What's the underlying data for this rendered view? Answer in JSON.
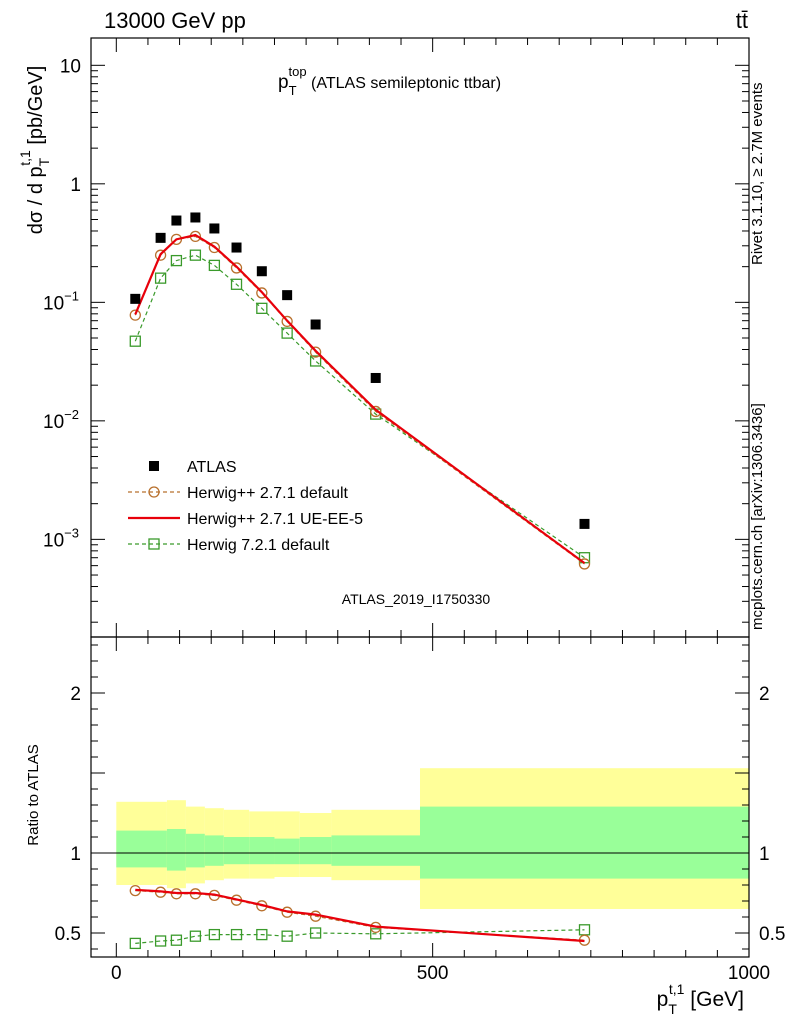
{
  "header": {
    "left": "13000 GeV pp",
    "right": "tt̄"
  },
  "side_labels": {
    "rivet": "Rivet 3.1.10, ≥ 2.7M events",
    "mcplots": "mcplots.cern.ch [arXiv:1306.3436]"
  },
  "chart_data": [
    {
      "type": "scatter",
      "panel": "main",
      "title": "p_T^top (ATLAS semileptonic ttbar)",
      "title_main": "p",
      "title_sub": "T",
      "title_sup": "top",
      "title_rest": "(ATLAS semileptonic ttbar)",
      "ylabel": "dσ / d p_T^{t,1} [pb/GeV]",
      "ylabel_parts": {
        "prefix": "dσ / d p",
        "sub": "T",
        "sup": "t,1",
        "suffix": " [pb/GeV]"
      },
      "yscale": "log",
      "ylim": [
        0.00015,
        17
      ],
      "xlim": [
        -40,
        1000
      ],
      "yticks": [
        {
          "value": 10,
          "label": "10"
        },
        {
          "value": 1,
          "label": "1"
        },
        {
          "value": 0.1,
          "label": "10",
          "exp": "−1"
        },
        {
          "value": 0.01,
          "label": "10",
          "exp": "−2"
        },
        {
          "value": 0.001,
          "label": "10",
          "exp": "−3"
        }
      ],
      "watermark": "ATLAS_2019_I1750330",
      "legend_position": "lower-left",
      "series": [
        {
          "name": "ATLAS",
          "style": "data-squares",
          "color": "#000000",
          "x": [
            30,
            70,
            95,
            125,
            155,
            190,
            230,
            270,
            315,
            410,
            740
          ],
          "y": [
            0.107,
            0.35,
            0.49,
            0.52,
            0.42,
            0.29,
            0.183,
            0.115,
            0.065,
            0.023,
            0.00135
          ]
        },
        {
          "name": "Herwig++ 2.7.1 default",
          "style": "dashed-circles",
          "color": "#b8702d",
          "x": [
            30,
            70,
            95,
            125,
            155,
            190,
            230,
            270,
            315,
            410,
            740
          ],
          "y": [
            0.078,
            0.25,
            0.34,
            0.36,
            0.29,
            0.195,
            0.12,
            0.069,
            0.038,
            0.012,
            0.00062
          ]
        },
        {
          "name": "Herwig++ 2.7.1 UE-EE-5",
          "style": "solid-line",
          "color": "#e8000b",
          "x": [
            30,
            70,
            95,
            125,
            155,
            190,
            230,
            270,
            315,
            410,
            740
          ],
          "y": [
            0.079,
            0.255,
            0.34,
            0.37,
            0.295,
            0.2,
            0.122,
            0.07,
            0.039,
            0.0124,
            0.00063
          ]
        },
        {
          "name": "Herwig 7.2.1 default",
          "style": "dashed-squares",
          "color": "#3a9a2b",
          "x": [
            30,
            70,
            95,
            125,
            155,
            190,
            230,
            270,
            315,
            410,
            740
          ],
          "y": [
            0.047,
            0.16,
            0.225,
            0.25,
            0.205,
            0.142,
            0.089,
            0.055,
            0.032,
            0.0114,
            0.0007
          ]
        }
      ]
    },
    {
      "type": "line",
      "panel": "ratio",
      "ylabel": "Ratio to ATLAS",
      "xlabel": "p_T^{t,1} [GeV]",
      "xlabel_parts": {
        "prefix": "p",
        "sub": "T",
        "sup": "t,1",
        "suffix": " [GeV]"
      },
      "ylim": [
        0.35,
        2.35
      ],
      "xlim": [
        -40,
        1000
      ],
      "yticks": [
        {
          "value": 2,
          "label": "2"
        },
        {
          "value": 1,
          "label": "1"
        },
        {
          "value": 0.5,
          "label": "0.5"
        }
      ],
      "xticks": [
        {
          "value": 0,
          "label": "0"
        },
        {
          "value": 500,
          "label": "500"
        },
        {
          "value": 1000,
          "label": "1000"
        }
      ],
      "bands": [
        {
          "x0": 0,
          "x1": 80,
          "inner": [
            0.91,
            1.14
          ],
          "outer": [
            0.8,
            1.32
          ]
        },
        {
          "x0": 80,
          "x1": 110,
          "inner": [
            0.89,
            1.15
          ],
          "outer": [
            0.78,
            1.33
          ]
        },
        {
          "x0": 110,
          "x1": 140,
          "inner": [
            0.91,
            1.12
          ],
          "outer": [
            0.81,
            1.29
          ]
        },
        {
          "x0": 140,
          "x1": 170,
          "inner": [
            0.92,
            1.11
          ],
          "outer": [
            0.83,
            1.28
          ]
        },
        {
          "x0": 170,
          "x1": 210,
          "inner": [
            0.93,
            1.1
          ],
          "outer": [
            0.84,
            1.27
          ]
        },
        {
          "x0": 210,
          "x1": 250,
          "inner": [
            0.93,
            1.1
          ],
          "outer": [
            0.84,
            1.26
          ]
        },
        {
          "x0": 250,
          "x1": 290,
          "inner": [
            0.93,
            1.09
          ],
          "outer": [
            0.85,
            1.26
          ]
        },
        {
          "x0": 290,
          "x1": 340,
          "inner": [
            0.93,
            1.1
          ],
          "outer": [
            0.85,
            1.25
          ]
        },
        {
          "x0": 340,
          "x1": 480,
          "inner": [
            0.92,
            1.11
          ],
          "outer": [
            0.83,
            1.27
          ]
        },
        {
          "x0": 480,
          "x1": 1000,
          "inner": [
            0.84,
            1.29
          ],
          "outer": [
            0.65,
            1.53
          ]
        }
      ],
      "series": [
        {
          "name": "Herwig++ 2.7.1 default",
          "style": "dashed-circles",
          "color": "#b8702d",
          "x": [
            30,
            70,
            95,
            125,
            155,
            190,
            230,
            270,
            315,
            410,
            740
          ],
          "y": [
            0.765,
            0.755,
            0.745,
            0.745,
            0.735,
            0.705,
            0.67,
            0.63,
            0.605,
            0.535,
            0.455
          ]
        },
        {
          "name": "Herwig++ 2.7.1 UE-EE-5",
          "style": "solid-line",
          "color": "#e8000b",
          "x": [
            30,
            70,
            95,
            125,
            155,
            190,
            230,
            270,
            315,
            410,
            740
          ],
          "y": [
            0.77,
            0.76,
            0.75,
            0.75,
            0.74,
            0.71,
            0.675,
            0.635,
            0.615,
            0.54,
            0.45
          ]
        },
        {
          "name": "Herwig 7.2.1 default",
          "style": "dashed-squares",
          "color": "#3a9a2b",
          "x": [
            30,
            70,
            95,
            125,
            155,
            190,
            230,
            270,
            315,
            410,
            740
          ],
          "y": [
            0.435,
            0.45,
            0.455,
            0.48,
            0.49,
            0.49,
            0.49,
            0.48,
            0.5,
            0.495,
            0.52
          ]
        }
      ]
    }
  ]
}
